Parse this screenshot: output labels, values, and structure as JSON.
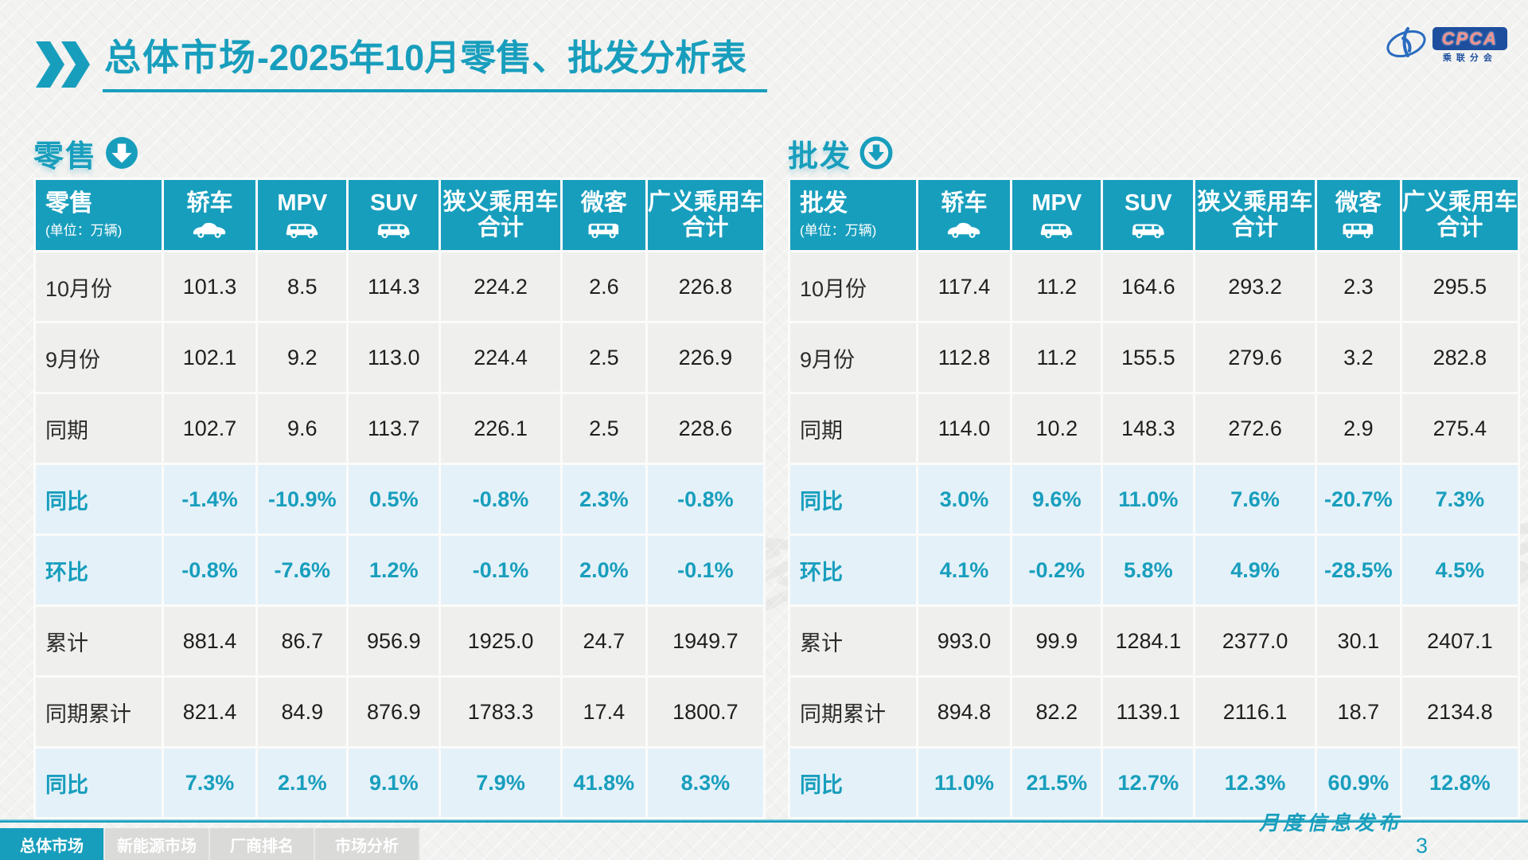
{
  "colors": {
    "accent": "#189EBD",
    "row_alt": "#E4F1F8",
    "bg": "#F2F2F0",
    "logo_blue": "#1E4F9E"
  },
  "header": {
    "title_primary": "总体市场",
    "title_secondary": "-2025年10月零售、批发分析表",
    "logo": {
      "acronym": "CPCA",
      "org": "乘联分会"
    }
  },
  "watermark": "乘联分会",
  "retail": {
    "section_title": "零售",
    "corner_label": "零售",
    "unit_note": "(单位：万辆)",
    "columns": [
      {
        "label": "轿车",
        "icon": "sedan-icon"
      },
      {
        "label": "MPV",
        "icon": "mpv-icon"
      },
      {
        "label": "SUV",
        "icon": "suv-icon"
      },
      {
        "label": "狭义乘用车合计",
        "two_line": true
      },
      {
        "label": "微客",
        "icon": "microvan-icon"
      },
      {
        "label": "广义乘用车合计",
        "two_line": true
      }
    ],
    "rows": [
      {
        "label": "10月份",
        "type": "data",
        "values": [
          "101.3",
          "8.5",
          "114.3",
          "224.2",
          "2.6",
          "226.8"
        ]
      },
      {
        "label": "9月份",
        "type": "data",
        "values": [
          "102.1",
          "9.2",
          "113.0",
          "224.4",
          "2.5",
          "226.9"
        ]
      },
      {
        "label": "同期",
        "type": "data",
        "values": [
          "102.7",
          "9.6",
          "113.7",
          "226.1",
          "2.5",
          "228.6"
        ]
      },
      {
        "label": "同比",
        "type": "pct",
        "values": [
          "-1.4%",
          "-10.9%",
          "0.5%",
          "-0.8%",
          "2.3%",
          "-0.8%"
        ]
      },
      {
        "label": "环比",
        "type": "pct",
        "values": [
          "-0.8%",
          "-7.6%",
          "1.2%",
          "-0.1%",
          "2.0%",
          "-0.1%"
        ]
      },
      {
        "label": "累计",
        "type": "data",
        "values": [
          "881.4",
          "86.7",
          "956.9",
          "1925.0",
          "24.7",
          "1949.7"
        ]
      },
      {
        "label": "同期累计",
        "type": "data",
        "values": [
          "821.4",
          "84.9",
          "876.9",
          "1783.3",
          "17.4",
          "1800.7"
        ]
      },
      {
        "label": "同比",
        "type": "pct",
        "values": [
          "7.3%",
          "2.1%",
          "9.1%",
          "7.9%",
          "41.8%",
          "8.3%"
        ]
      }
    ]
  },
  "wholesale": {
    "section_title": "批发",
    "corner_label": "批发",
    "unit_note": "(单位：万辆)",
    "columns": [
      {
        "label": "轿车",
        "icon": "sedan-icon"
      },
      {
        "label": "MPV",
        "icon": "mpv-icon"
      },
      {
        "label": "SUV",
        "icon": "suv-icon"
      },
      {
        "label": "狭义乘用车合计",
        "two_line": true
      },
      {
        "label": "微客",
        "icon": "microvan-icon"
      },
      {
        "label": "广义乘用车合计",
        "two_line": true
      }
    ],
    "rows": [
      {
        "label": "10月份",
        "type": "data",
        "values": [
          "117.4",
          "11.2",
          "164.6",
          "293.2",
          "2.3",
          "295.5"
        ]
      },
      {
        "label": "9月份",
        "type": "data",
        "values": [
          "112.8",
          "11.2",
          "155.5",
          "279.6",
          "3.2",
          "282.8"
        ]
      },
      {
        "label": "同期",
        "type": "data",
        "values": [
          "114.0",
          "10.2",
          "148.3",
          "272.6",
          "2.9",
          "275.4"
        ]
      },
      {
        "label": "同比",
        "type": "pct",
        "values": [
          "3.0%",
          "9.6%",
          "11.0%",
          "7.6%",
          "-20.7%",
          "7.3%"
        ]
      },
      {
        "label": "环比",
        "type": "pct",
        "values": [
          "4.1%",
          "-0.2%",
          "5.8%",
          "4.9%",
          "-28.5%",
          "4.5%"
        ]
      },
      {
        "label": "累计",
        "type": "data",
        "values": [
          "993.0",
          "99.9",
          "1284.1",
          "2377.0",
          "30.1",
          "2407.1"
        ]
      },
      {
        "label": "同期累计",
        "type": "data",
        "values": [
          "894.8",
          "82.2",
          "1139.1",
          "2116.1",
          "18.7",
          "2134.8"
        ]
      },
      {
        "label": "同比",
        "type": "pct",
        "values": [
          "11.0%",
          "21.5%",
          "12.7%",
          "12.3%",
          "60.9%",
          "12.8%"
        ]
      }
    ]
  },
  "nav": {
    "tabs": [
      {
        "label": "总体市场",
        "active": true
      },
      {
        "label": "新能源市场",
        "active": false
      },
      {
        "label": "厂商排名",
        "active": false
      },
      {
        "label": "市场分析",
        "active": false
      }
    ]
  },
  "footer": {
    "issue_label": "月度信息发布",
    "page_number": "3"
  }
}
